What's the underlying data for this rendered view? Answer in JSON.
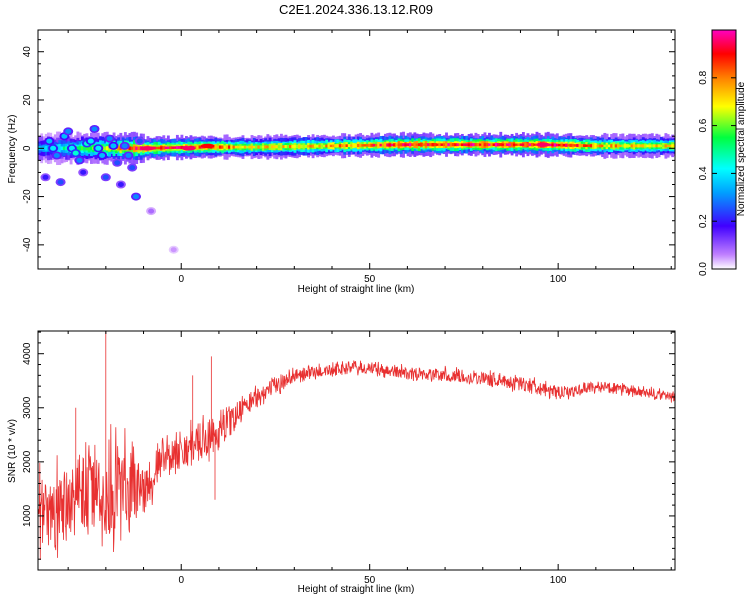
{
  "title": "C2E1.2024.336.13.12.R09",
  "chart_data": [
    {
      "type": "heatmap",
      "xlabel": "Height of straight line (km)",
      "ylabel": "Frequency (Hz)",
      "xlim": [
        -38,
        131
      ],
      "ylim": [
        -50,
        49
      ],
      "x_ticks": [
        0,
        50,
        100
      ],
      "x_tick_labels": [
        "0",
        "50",
        "100"
      ],
      "y_ticks": [
        -40,
        -20,
        0,
        20,
        40
      ],
      "y_tick_labels": [
        "-40",
        "-20",
        "0",
        "20",
        "40"
      ],
      "grid": false,
      "colorbar": {
        "label": "Normalized spectral amplitude",
        "range": [
          0,
          1
        ],
        "ticks": [
          0.0,
          0.2,
          0.4,
          0.6,
          0.8
        ],
        "tick_labels": [
          "0.0",
          "0.2",
          "0.4",
          "0.6",
          "0.8"
        ],
        "colors": [
          "#ffffff",
          "#a000ff",
          "#0000ff",
          "#00ffff",
          "#00ff00",
          "#ffff00",
          "#ff8000",
          "#ff0000",
          "#ff00ff"
        ]
      },
      "ridge": {
        "center_frequency_hz": 1,
        "segments": [
          {
            "x": -37,
            "f": 0,
            "v": 0.35
          },
          {
            "x": -10,
            "f": 0,
            "v": 0.9
          },
          {
            "x": 5,
            "f": 0.5,
            "v": 0.85
          },
          {
            "x": 20,
            "f": 0.5,
            "v": 0.7
          },
          {
            "x": 40,
            "f": 1,
            "v": 0.75
          },
          {
            "x": 60,
            "f": 1.5,
            "v": 0.9
          },
          {
            "x": 80,
            "f": 1.5,
            "v": 0.9
          },
          {
            "x": 95,
            "f": 1.5,
            "v": 0.95
          },
          {
            "x": 110,
            "f": 1,
            "v": 0.75
          },
          {
            "x": 131,
            "f": 1,
            "v": 0.7
          }
        ],
        "hot_spots": [
          {
            "x": -9,
            "f": 0,
            "v": 0.95
          },
          {
            "x": 2,
            "f": 0,
            "v": 0.95
          },
          {
            "x": 7,
            "f": 1,
            "v": 0.9
          },
          {
            "x": 96,
            "f": 1.5,
            "v": 0.95
          }
        ]
      },
      "scatter_low_heights": [
        {
          "x": -35,
          "f": 3,
          "v": 0.35
        },
        {
          "x": -33,
          "f": -3,
          "v": 0.3
        },
        {
          "x": -31,
          "f": 5,
          "v": 0.35
        },
        {
          "x": -29,
          "f": 0,
          "v": 0.4
        },
        {
          "x": -27,
          "f": -5,
          "v": 0.3
        },
        {
          "x": -25,
          "f": 2,
          "v": 0.45
        },
        {
          "x": -23,
          "f": 8,
          "v": 0.3
        },
        {
          "x": -21,
          "f": -3,
          "v": 0.35
        },
        {
          "x": -19,
          "f": 4,
          "v": 0.3
        },
        {
          "x": -17,
          "f": -6,
          "v": 0.25
        },
        {
          "x": -15,
          "f": 1,
          "v": 0.3
        },
        {
          "x": -13,
          "f": -8,
          "v": 0.25
        },
        {
          "x": -36,
          "f": -12,
          "v": 0.2
        },
        {
          "x": -32,
          "f": -14,
          "v": 0.25
        },
        {
          "x": -26,
          "f": -10,
          "v": 0.2
        },
        {
          "x": -20,
          "f": -12,
          "v": 0.25
        },
        {
          "x": -16,
          "f": -15,
          "v": 0.2
        },
        {
          "x": -12,
          "f": -20,
          "v": 0.3
        },
        {
          "x": -30,
          "f": 7,
          "v": 0.3
        },
        {
          "x": -24,
          "f": 3,
          "v": 0.4
        },
        {
          "x": -18,
          "f": 1,
          "v": 0.35
        },
        {
          "x": -34,
          "f": 0,
          "v": 0.4
        },
        {
          "x": -28,
          "f": -2,
          "v": 0.45
        },
        {
          "x": -22,
          "f": 0,
          "v": 0.4
        },
        {
          "x": -14,
          "f": -3,
          "v": 0.3
        },
        {
          "x": -11,
          "f": 3,
          "v": 0.25
        },
        {
          "x": -8,
          "f": -26,
          "v": 0.08
        },
        {
          "x": -2,
          "f": -42,
          "v": 0.05
        }
      ]
    },
    {
      "type": "line",
      "xlabel": "Height of straight line (km)",
      "ylabel": "SNR (10 * v/v)",
      "xlim": [
        -38,
        131
      ],
      "ylim": [
        0,
        4420
      ],
      "x_ticks": [
        0,
        50,
        100
      ],
      "x_tick_labels": [
        "0",
        "50",
        "100"
      ],
      "y_ticks": [
        1000,
        2000,
        3000,
        4000
      ],
      "y_tick_labels": [
        "1000",
        "2000",
        "3000",
        "4000"
      ],
      "grid": false,
      "color": "#e83030",
      "trend": [
        {
          "x": -38,
          "mean": 900,
          "noise": 700
        },
        {
          "x": -25,
          "mean": 1300,
          "noise": 900
        },
        {
          "x": -15,
          "mean": 1500,
          "noise": 1000
        },
        {
          "x": -10,
          "mean": 1450,
          "noise": 500
        },
        {
          "x": -5,
          "mean": 2100,
          "noise": 350
        },
        {
          "x": 5,
          "mean": 2300,
          "noise": 450
        },
        {
          "x": 10,
          "mean": 2600,
          "noise": 350
        },
        {
          "x": 20,
          "mean": 3200,
          "noise": 200
        },
        {
          "x": 30,
          "mean": 3600,
          "noise": 150
        },
        {
          "x": 45,
          "mean": 3750,
          "noise": 130
        },
        {
          "x": 60,
          "mean": 3650,
          "noise": 130
        },
        {
          "x": 80,
          "mean": 3550,
          "noise": 140
        },
        {
          "x": 95,
          "mean": 3400,
          "noise": 150
        },
        {
          "x": 100,
          "mean": 3250,
          "noise": 120
        },
        {
          "x": 110,
          "mean": 3400,
          "noise": 110
        },
        {
          "x": 120,
          "mean": 3300,
          "noise": 110
        },
        {
          "x": 131,
          "mean": 3200,
          "noise": 110
        }
      ],
      "spikes": [
        {
          "x": -20,
          "y": 4420
        },
        {
          "x": 8,
          "y": 3950
        },
        {
          "x": 3,
          "y": 3600
        },
        {
          "x": -28,
          "y": 3000
        },
        {
          "x": 9,
          "y": 1300
        }
      ]
    }
  ]
}
